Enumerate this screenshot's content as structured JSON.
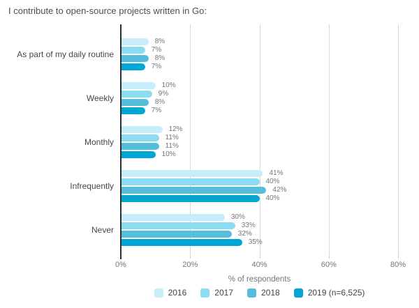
{
  "title": "I contribute to open-source projects written in Go:",
  "chart_data": {
    "type": "bar",
    "orientation": "horizontal",
    "title": "I contribute to open-source projects written in Go:",
    "categories": [
      "As part of my daily routine",
      "Weekly",
      "Monthly",
      "Infrequently",
      "Never"
    ],
    "series": [
      {
        "name": "2016",
        "color": "#C6EDF9",
        "values": [
          8,
          10,
          12,
          41,
          30
        ]
      },
      {
        "name": "2017",
        "color": "#8BDBF1",
        "values": [
          7,
          9,
          11,
          40,
          33
        ]
      },
      {
        "name": "2018",
        "color": "#56BEDD",
        "values": [
          8,
          8,
          11,
          42,
          32
        ]
      },
      {
        "name": "2019 (n=6,525)",
        "color": "#00A7D4",
        "values": [
          7,
          7,
          10,
          40,
          35
        ]
      }
    ],
    "value_suffix": "%",
    "xlabel": "% of respondents",
    "xlim": [
      0,
      80
    ],
    "x_ticks": [
      {
        "value": 0,
        "label": "0%"
      },
      {
        "value": 20,
        "label": "20%"
      },
      {
        "value": 40,
        "label": "40%"
      },
      {
        "value": 60,
        "label": "60%"
      },
      {
        "value": 80,
        "label": "80%"
      }
    ],
    "grid": "vertical",
    "legend_position": "bottom"
  },
  "colors": {
    "axis": "#2e2e2e",
    "gridline": "#d8d8d8",
    "value_label": "#757575",
    "category_label": "#454649",
    "title_text": "#4c4e51"
  }
}
